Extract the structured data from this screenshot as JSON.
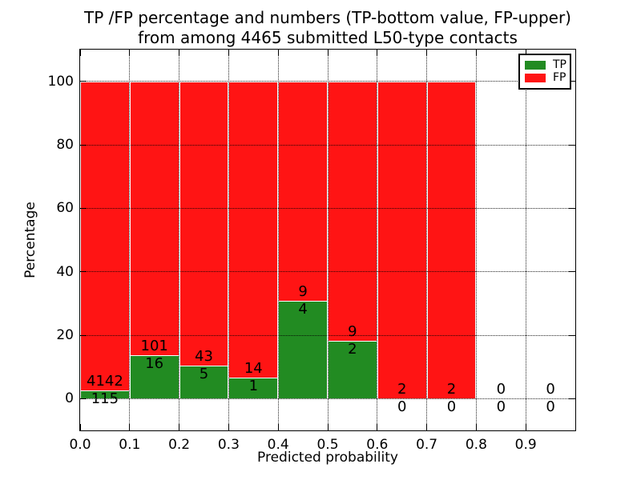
{
  "title": {
    "line1": "TP /FP percentage and numbers (TP-bottom value, FP-upper)",
    "line2": "from among 4465 submitted L50-type contacts"
  },
  "chart_data": {
    "type": "bar",
    "stacked": true,
    "title": "TP /FP percentage and numbers (TP-bottom value, FP-upper) from among 4465 submitted L50-type contacts",
    "xlabel": "Predicted probability",
    "ylabel": "Percentage",
    "xlim": [
      0.0,
      1.0
    ],
    "ylim": [
      -10,
      110
    ],
    "grid": true,
    "legend_position": "upper right",
    "total_contacts": 4465,
    "xticks": [
      {
        "value": 0.0,
        "label": "0.0"
      },
      {
        "value": 0.1,
        "label": "0.1"
      },
      {
        "value": 0.2,
        "label": "0.2"
      },
      {
        "value": 0.3,
        "label": "0.3"
      },
      {
        "value": 0.4,
        "label": "0.4"
      },
      {
        "value": 0.5,
        "label": "0.5"
      },
      {
        "value": 0.6,
        "label": "0.6"
      },
      {
        "value": 0.7,
        "label": "0.7"
      },
      {
        "value": 0.8,
        "label": "0.8"
      },
      {
        "value": 0.9,
        "label": "0.9"
      }
    ],
    "yticks": [
      {
        "value": 0,
        "label": "0"
      },
      {
        "value": 20,
        "label": "20"
      },
      {
        "value": 40,
        "label": "40"
      },
      {
        "value": 60,
        "label": "60"
      },
      {
        "value": 80,
        "label": "80"
      },
      {
        "value": 100,
        "label": "100"
      }
    ],
    "series": [
      {
        "name": "TP",
        "color": "#228b22"
      },
      {
        "name": "FP",
        "color": "#ff1414"
      }
    ],
    "bins": [
      {
        "x0": 0.0,
        "x1": 0.1,
        "tp_count": 115,
        "fp_count": 4142,
        "tp_pct": 2.7,
        "fp_pct": 97.3,
        "has_bar": true
      },
      {
        "x0": 0.1,
        "x1": 0.2,
        "tp_count": 16,
        "fp_count": 101,
        "tp_pct": 13.68,
        "fp_pct": 86.32,
        "has_bar": true
      },
      {
        "x0": 0.2,
        "x1": 0.3,
        "tp_count": 5,
        "fp_count": 43,
        "tp_pct": 10.42,
        "fp_pct": 89.58,
        "has_bar": true
      },
      {
        "x0": 0.3,
        "x1": 0.4,
        "tp_count": 1,
        "fp_count": 14,
        "tp_pct": 6.67,
        "fp_pct": 93.33,
        "has_bar": true
      },
      {
        "x0": 0.4,
        "x1": 0.5,
        "tp_count": 4,
        "fp_count": 9,
        "tp_pct": 30.77,
        "fp_pct": 69.23,
        "has_bar": true
      },
      {
        "x0": 0.5,
        "x1": 0.6,
        "tp_count": 2,
        "fp_count": 9,
        "tp_pct": 18.18,
        "fp_pct": 81.82,
        "has_bar": true
      },
      {
        "x0": 0.6,
        "x1": 0.7,
        "tp_count": 0,
        "fp_count": 2,
        "tp_pct": 0.0,
        "fp_pct": 100.0,
        "has_bar": true
      },
      {
        "x0": 0.7,
        "x1": 0.8,
        "tp_count": 0,
        "fp_count": 2,
        "tp_pct": 0.0,
        "fp_pct": 100.0,
        "has_bar": true
      },
      {
        "x0": 0.8,
        "x1": 0.9,
        "tp_count": 0,
        "fp_count": 0,
        "tp_pct": 0.0,
        "fp_pct": 0.0,
        "has_bar": false
      },
      {
        "x0": 0.9,
        "x1": 1.0,
        "tp_count": 0,
        "fp_count": 0,
        "tp_pct": 0.0,
        "fp_pct": 0.0,
        "has_bar": false
      }
    ]
  }
}
